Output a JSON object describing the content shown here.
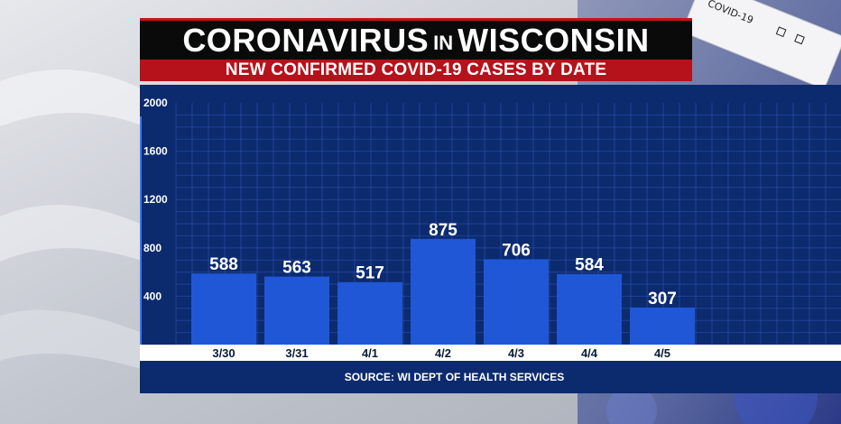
{
  "header": {
    "title_part1": "Coronavirus",
    "title_connector": "in",
    "title_part2": "Wisconsin",
    "subtitle": "NEW CONFIRMED COVID-19 CASES BY DATE"
  },
  "background": {
    "test_strip_label": "COVID-19"
  },
  "source": "SOURCE: WI DEPT OF HEALTH SERVICES",
  "colors": {
    "bar": "#1f57d6",
    "panel": "#0c2a6e",
    "grid": "#2f55b8",
    "title_bg": "#0a0a0a",
    "subtitle_bg": "#b5121b"
  },
  "chart_data": {
    "type": "bar",
    "title": "NEW CONFIRMED COVID-19 CASES BY DATE",
    "categories": [
      "3/30",
      "3/31",
      "4/1",
      "4/2",
      "4/3",
      "4/4",
      "4/5"
    ],
    "values": [
      588,
      563,
      517,
      875,
      706,
      584,
      307
    ],
    "data_labels": [
      "588",
      "563",
      "517",
      "875",
      "706",
      "584",
      "307"
    ],
    "yticks": [
      400,
      800,
      1200,
      1600,
      2000
    ],
    "ytick_labels": [
      "400",
      "800",
      "1200",
      "1600",
      "2000"
    ],
    "ylim": [
      0,
      2000
    ],
    "grid": true,
    "legend": "none",
    "xlabel": "",
    "ylabel": ""
  }
}
